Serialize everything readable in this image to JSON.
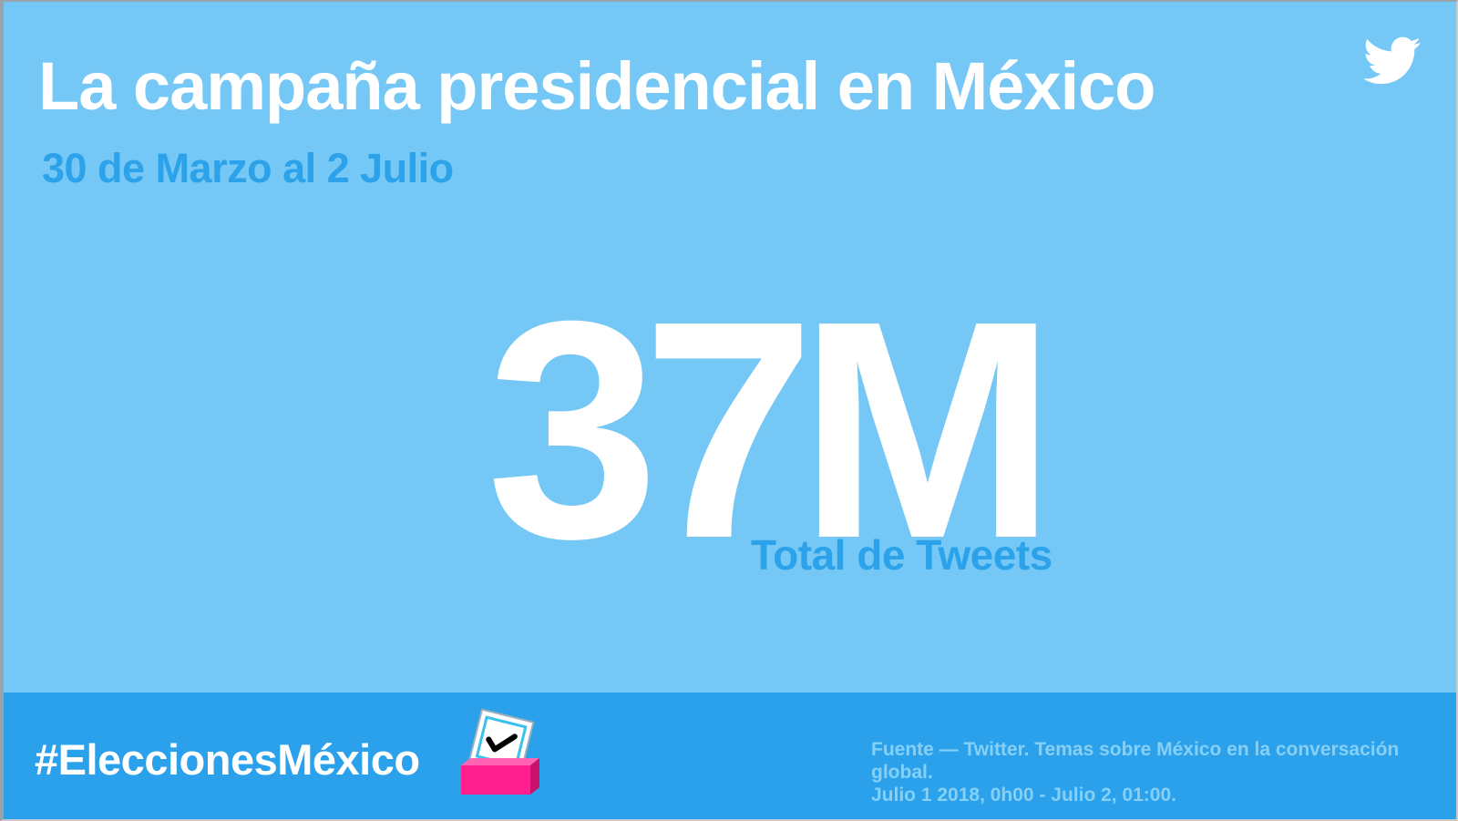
{
  "header": {
    "title": "La campaña presidencial en México",
    "subtitle": "30 de Marzo al 2 Julio",
    "logo_icon": "twitter-bird-icon"
  },
  "stat": {
    "value": "37M",
    "label": "Total de Tweets"
  },
  "footer": {
    "hashtag": "#EleccionesMéxico",
    "ballot_icon": "ballot-box-icon",
    "source_line1": "Fuente — Twitter. Temas sobre México en la conversación",
    "source_line2": "global.",
    "source_line3": "Julio 1 2018, 0h00 - Julio 2, 01:00."
  },
  "colors": {
    "background": "#75c8f5",
    "accent": "#2ba2ea",
    "footer": "#2aa1ea",
    "text": "#ffffff",
    "ballot_box": "#ff1f8e"
  }
}
